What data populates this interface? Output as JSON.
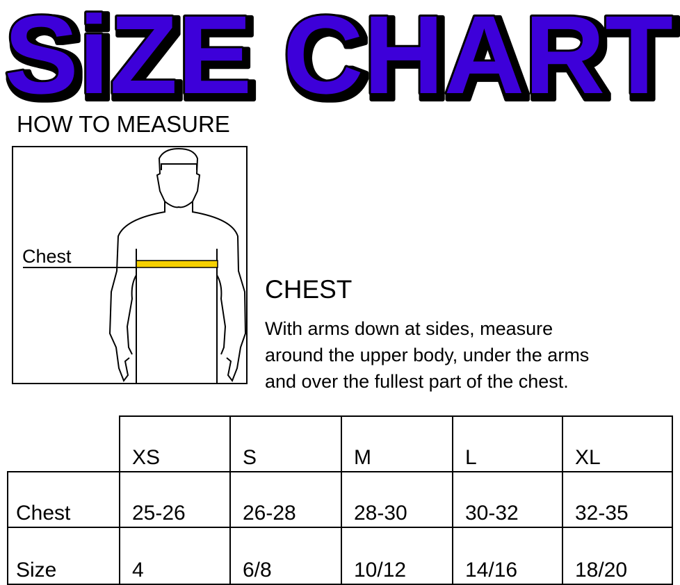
{
  "title": "SiZE CHART",
  "title_color": "#3d00d9",
  "how_to_measure": "HOW TO MEASURE",
  "figure": {
    "label": "Chest",
    "tape_color": "#f5d000"
  },
  "chest": {
    "heading": "CHEST",
    "lines": [
      "With arms down at sides, measure",
      "around the upper body, under the arms",
      "and over the fullest part of the chest."
    ]
  },
  "table": {
    "headers": [
      "XS",
      "S",
      "M",
      "L",
      "XL"
    ],
    "rows": [
      {
        "label": "Chest",
        "values": [
          "25-26",
          "26-28",
          "28-30",
          "30-32",
          "32-35"
        ]
      },
      {
        "label": "Size",
        "values": [
          "4",
          "6/8",
          "10/12",
          "14/16",
          "18/20"
        ]
      }
    ]
  }
}
